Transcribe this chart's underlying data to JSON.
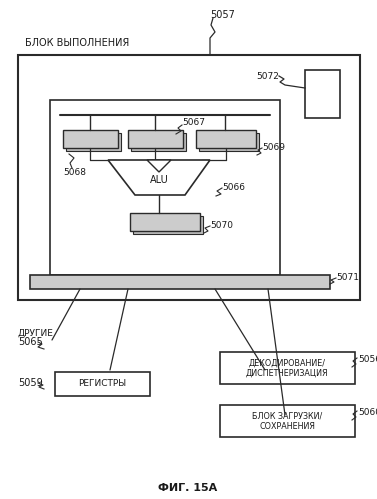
{
  "title": "ФИГ. 15А",
  "bg_color": "#ffffff",
  "label_blok": "БЛОК ВЫПОЛНЕНИЯ",
  "label_5057": "5057",
  "label_5072": "5072",
  "label_5067": "5067",
  "label_5068": "5068",
  "label_5069": "5069",
  "label_5066": "5066",
  "label_5070": "5070",
  "label_5071": "5071",
  "label_5065": "5065",
  "label_drugie": "ДРУГИЕ",
  "label_5059": "5059",
  "label_registry": "РЕГИСТРЫ",
  "label_5056": "5056",
  "label_decode": "ДЕКОДИРОВАНИЕ/\nДИСПЕТЧЕРИЗАЦИЯ",
  "label_5060": "5060",
  "label_load": "БЛОК ЗАГРУЗКИ/\nСОХРАНЕНИЯ",
  "line_color": "#2a2a2a",
  "text_color": "#1a1a1a"
}
